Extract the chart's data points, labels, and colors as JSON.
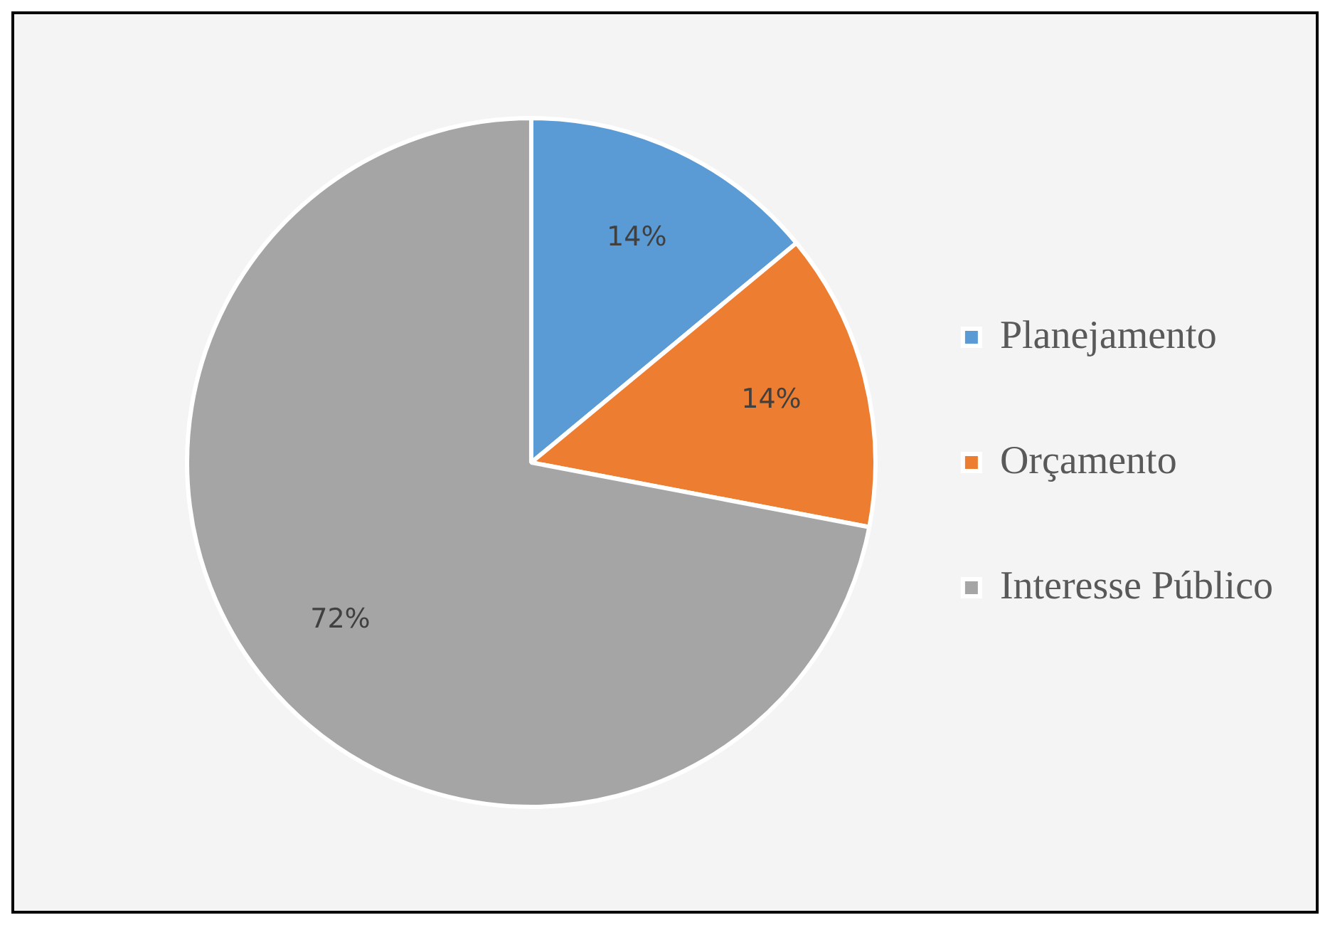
{
  "chart_data": {
    "type": "pie",
    "categories": [
      "Planejamento",
      "Orçamento",
      "Interesse Público"
    ],
    "values": [
      14,
      14,
      72
    ],
    "colors": [
      "#5b9bd5",
      "#ed7d31",
      "#a5a5a5"
    ],
    "value_labels": [
      "14%",
      "14%",
      "72%"
    ],
    "legend": "right"
  }
}
